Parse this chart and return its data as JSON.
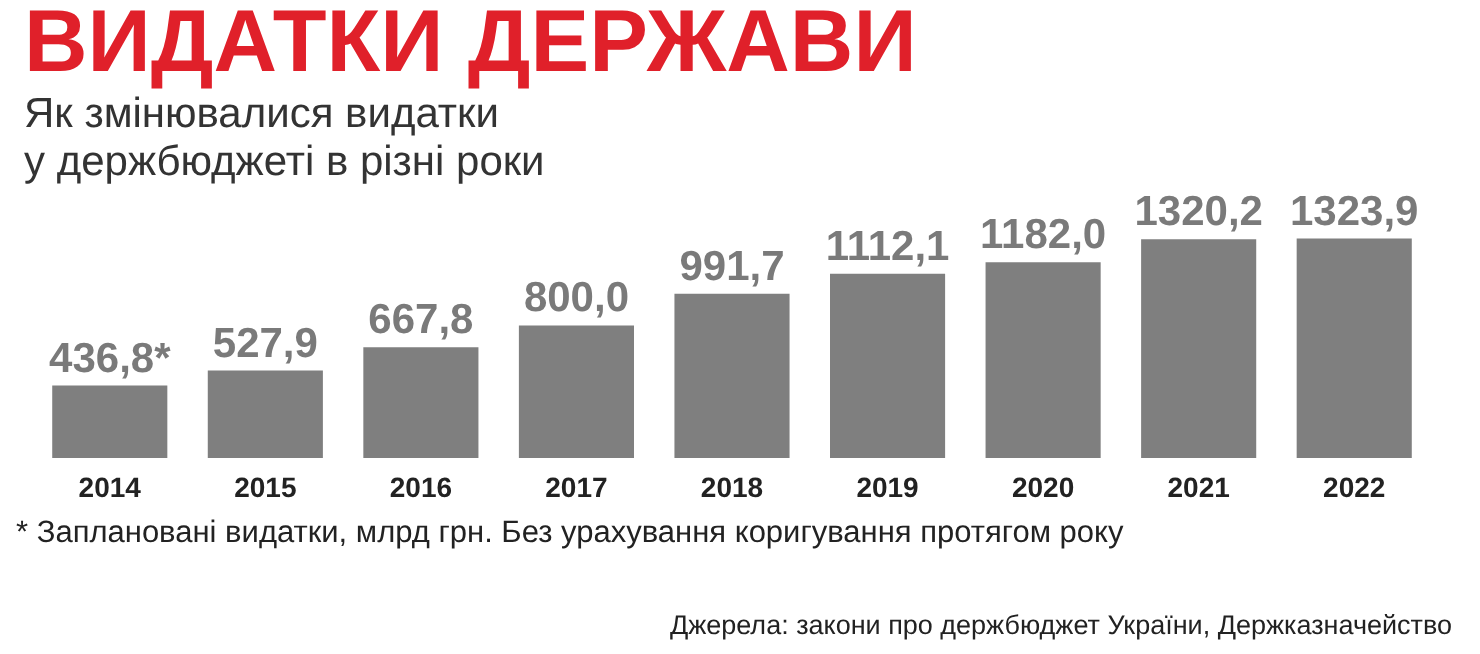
{
  "chart_data": {
    "type": "bar",
    "title": "ВИДАТКИ ДЕРЖАВИ",
    "subtitle": "Як змінювалися видатки\nу держбюджеті в різні роки",
    "categories": [
      "2014",
      "2015",
      "2016",
      "2017",
      "2018",
      "2019",
      "2020",
      "2021",
      "2022"
    ],
    "series": [
      {
        "color": "#7f7f7f",
        "values": [
          436.8,
          527.9,
          667.8,
          800.0,
          991.7,
          1112.1,
          1182.0,
          1320.2,
          1323.9
        ],
        "value_labels": [
          "436,8*",
          "527,9",
          "667,8",
          "800,0",
          "991,7",
          "1112,1",
          "1182,0",
          "1320,2",
          "1323,9"
        ]
      }
    ],
    "annotations": [
      "* Заплановані видатки, млрд грн. Без урахування коригування протягом року",
      "Джерела: закони про держбюджет України, Держказначейство"
    ]
  }
}
